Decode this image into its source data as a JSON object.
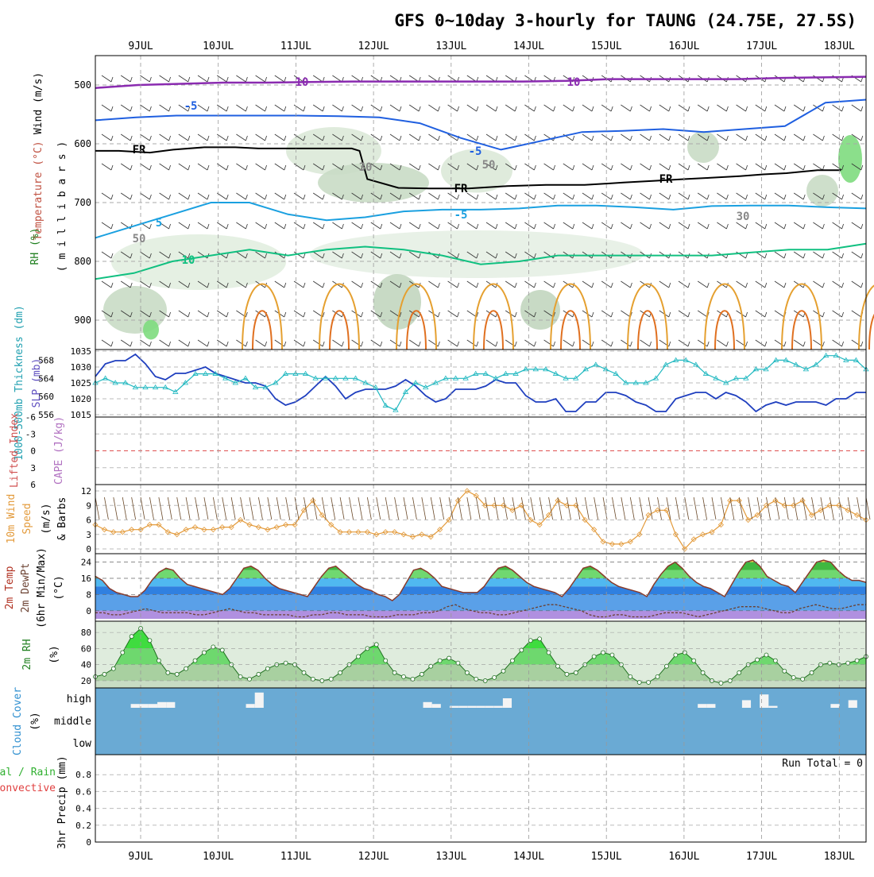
{
  "title": "GFS 0~10day 3-hourly for TAUNG (24.75E, 27.5S)",
  "colors": {
    "slp": "#1f3fbf",
    "thickness": "#20b8c0",
    "wind10m": "#e39a3a",
    "rh_fill": "#3fdc3f",
    "cloud_bg": "#6aaad4",
    "temp_minus10": "#8a2bb0",
    "temp_minus5": "#1f5fe0",
    "temp_5": "#1aa0e0",
    "temp_10": "#10c080",
    "freezing": "#000000",
    "lifted_index_zero": "#e05050"
  },
  "panels": {
    "upper": {
      "ylabel_wind": "Wind (m/s)",
      "ylabel_temp": "Temperature (°C)",
      "ylabel_mb": "( m i l l i b a r s )",
      "ylabel_rh": "RH (%)",
      "contour_labels": [
        "10",
        "10",
        "-5",
        "-5",
        "-5",
        "5",
        "FR",
        "FR",
        "FR",
        "10",
        "30",
        "30",
        "50",
        "50"
      ]
    },
    "slp": {
      "ylabel_thick": "1000-500mb Thickness (dm)",
      "ylabel_slp": "SLP (mb)"
    },
    "cape": {
      "ylabel_li": "Lifted Index",
      "ylabel_cape": "CAPE (J/kg)"
    },
    "wind10": {
      "ylabel_a": "10m Wind",
      "ylabel_b": "Speed",
      "ylabel_c": "(m/s)",
      "ylabel_d": "& Barbs"
    },
    "temp2m": {
      "ylabel_a": "2m Temp",
      "ylabel_b": "2m DewPt",
      "ylabel_c": "(6hr Min/Max)",
      "ylabel_d": "(°C)"
    },
    "rh2m": {
      "ylabel_a": "2m RH",
      "ylabel_b": "(%)"
    },
    "cloud": {
      "ylabel_a": "Cloud Cover",
      "ylabel_b": "(%)",
      "levels": [
        "high",
        "middle",
        "low"
      ]
    },
    "precip": {
      "ylabel_a": "3hr Precip (mm)",
      "ylabel_b": "Total / Rain",
      "ylabel_c": "Convective",
      "run_total": "Run Total = 0"
    }
  },
  "chart_data": {
    "type": "line",
    "x_dates": [
      "9JUL",
      "10JUL",
      "11JUL",
      "12JUL",
      "13JUL",
      "14JUL",
      "15JUL",
      "16JUL",
      "17JUL",
      "18JUL"
    ],
    "pressure_levels": {
      "ticks": [
        500,
        600,
        700,
        800,
        900
      ],
      "ylim": [
        450,
        950
      ],
      "freezing_level_mb": [
        612,
        612,
        615,
        610,
        606,
        606,
        608,
        608,
        608,
        608,
        608,
        612,
        660,
        675,
        676,
        676,
        672,
        670,
        670,
        666,
        663,
        660,
        658,
        655,
        652,
        650,
        645,
        645
      ],
      "freezing_level_x_days": [
        0.0,
        0.3,
        0.7,
        1.0,
        1.4,
        1.8,
        2.1,
        2.5,
        2.8,
        3.1,
        3.3,
        3.4,
        3.5,
        3.9,
        4.3,
        4.8,
        5.3,
        5.8,
        6.3,
        6.8,
        7.2,
        7.6,
        7.9,
        8.3,
        8.6,
        8.9,
        9.3,
        9.6
      ]
    },
    "slp": {
      "series_name": "SLP (mb)",
      "yticks": [
        1015,
        1020,
        1025,
        1030,
        1035
      ],
      "ylim": [
        1015,
        1035
      ],
      "values": [
        1027,
        1031,
        1032,
        1032,
        1034,
        1031,
        1027,
        1026,
        1028,
        1028,
        1029,
        1030,
        1028,
        1027,
        1026,
        1025,
        1025,
        1024,
        1020,
        1018,
        1019,
        1021,
        1024,
        1027,
        1024,
        1020,
        1022,
        1023,
        1023,
        1023,
        1024,
        1026,
        1024,
        1021,
        1019,
        1020,
        1023,
        1023,
        1023,
        1024,
        1026,
        1025,
        1025,
        1021,
        1019,
        1019,
        1020,
        1016,
        1016,
        1019,
        1019,
        1022,
        1022,
        1021,
        1019,
        1018,
        1016,
        1016,
        1020,
        1021,
        1022,
        1022,
        1020,
        1022,
        1021,
        1019,
        1016,
        1018,
        1019,
        1018,
        1019,
        1019,
        1019,
        1018,
        1020,
        1020,
        1022,
        1022
      ]
    },
    "thickness": {
      "series_name": "1000-500mb Thickness (dm)",
      "yticks": [
        556,
        560,
        564,
        568
      ],
      "ylim": [
        556,
        570
      ],
      "values": [
        563,
        564,
        563,
        563,
        562,
        562,
        562,
        562,
        561,
        563,
        565,
        565,
        565,
        564,
        563,
        564,
        562,
        562,
        563,
        565,
        565,
        565,
        564,
        564,
        564,
        564,
        564,
        563,
        562,
        558,
        557,
        561,
        563,
        562,
        563,
        564,
        564,
        564,
        565,
        565,
        564,
        565,
        565,
        566,
        566,
        566,
        565,
        564,
        564,
        566,
        567,
        566,
        565,
        563,
        563,
        563,
        564,
        567,
        568,
        568,
        567,
        565,
        564,
        563,
        564,
        564,
        566,
        566,
        568,
        568,
        567,
        566,
        567,
        569,
        569,
        568,
        568,
        566
      ]
    },
    "lifted_index": {
      "yticks": [
        6,
        3,
        0,
        -3,
        -6
      ],
      "ylim": [
        -6,
        6
      ],
      "values": []
    },
    "wind10m": {
      "series_name": "10m Wind Speed (m/s)",
      "yticks": [
        0,
        3,
        6,
        9,
        12
      ],
      "ylim": [
        0,
        12
      ],
      "values": [
        5,
        4,
        3.5,
        3.5,
        4,
        4,
        5,
        5,
        3.5,
        3,
        4,
        4.5,
        4,
        4,
        4.5,
        4.5,
        6,
        5,
        4.5,
        4,
        4.5,
        5,
        5,
        8,
        10,
        7,
        5,
        3.5,
        3.5,
        3.5,
        3.5,
        3,
        3.5,
        3.5,
        3,
        2.5,
        3,
        2.5,
        4,
        6,
        10,
        12,
        11,
        9,
        9,
        9,
        8,
        9,
        6,
        5,
        7,
        10,
        9,
        9,
        6,
        4,
        1.5,
        1,
        1,
        1.5,
        3,
        7,
        8,
        8,
        3,
        0,
        2,
        3,
        3.5,
        5,
        10,
        10,
        6,
        7,
        9,
        10,
        9,
        9,
        10,
        7,
        8,
        9,
        9,
        8,
        7,
        6
      ]
    },
    "temp2m": {
      "yticks": [
        0,
        8,
        16,
        24
      ],
      "ylim": [
        -4,
        27
      ],
      "temperature": [
        17,
        15,
        11,
        9,
        8,
        7,
        7,
        10,
        15,
        19,
        21,
        20,
        16,
        13,
        12,
        11,
        10,
        9,
        8,
        11,
        16,
        21,
        22,
        20,
        16,
        13,
        11,
        10,
        9,
        8,
        7,
        12,
        17,
        21,
        22,
        19,
        16,
        13,
        11,
        10,
        8,
        7,
        5,
        8,
        14,
        20,
        21,
        19,
        16,
        12,
        11,
        10,
        9,
        9,
        9,
        12,
        17,
        21,
        22,
        20,
        17,
        14,
        12,
        11,
        10,
        9,
        7,
        11,
        16,
        21,
        22,
        20,
        17,
        14,
        12,
        11,
        10,
        9,
        7,
        13,
        18,
        22,
        24,
        21,
        17,
        14,
        12,
        11,
        9,
        7,
        13,
        19,
        24,
        25,
        22,
        17,
        15,
        13,
        12,
        9,
        14,
        19,
        24,
        25,
        24,
        20,
        17,
        15,
        15,
        14
      ],
      "dewpoint": [
        -1,
        -1,
        -2,
        -2,
        -1,
        0,
        1,
        0,
        -1,
        -1,
        -1,
        -1,
        -2,
        -2,
        -1,
        0,
        1,
        0,
        -1,
        -1,
        -2,
        -2,
        -2,
        -2,
        -3,
        -3,
        -2,
        -2,
        -1,
        -1,
        -2,
        -2,
        -2,
        -3,
        -3,
        -3,
        -2,
        -2,
        -2,
        -1,
        -1,
        0,
        2,
        3,
        1,
        0,
        -1,
        -1,
        -2,
        -2,
        -1,
        0,
        1,
        2,
        3,
        3,
        2,
        1,
        0,
        -2,
        -3,
        -3,
        -2,
        -2,
        -3,
        -3,
        -3,
        -2,
        -1,
        -1,
        -1,
        -2,
        -3,
        -2,
        -1,
        0,
        1,
        2,
        2,
        2,
        1,
        0,
        -1,
        -1,
        1,
        2,
        3,
        2,
        1,
        1,
        2,
        3,
        3
      ]
    },
    "rh2m": {
      "yticks": [
        20,
        40,
        60,
        80
      ],
      "ylim": [
        15,
        90
      ],
      "values": [
        25,
        28,
        35,
        55,
        75,
        85,
        70,
        45,
        30,
        28,
        35,
        45,
        55,
        62,
        58,
        40,
        25,
        22,
        28,
        35,
        40,
        42,
        40,
        30,
        22,
        20,
        22,
        30,
        40,
        50,
        60,
        65,
        45,
        30,
        25,
        22,
        28,
        38,
        45,
        48,
        42,
        30,
        22,
        20,
        24,
        32,
        45,
        58,
        70,
        72,
        55,
        38,
        28,
        30,
        40,
        50,
        55,
        52,
        40,
        25,
        18,
        18,
        25,
        38,
        52,
        55,
        45,
        30,
        20,
        17,
        20,
        30,
        40,
        46,
        52,
        45,
        32,
        24,
        22,
        30,
        40,
        42,
        40,
        42,
        45,
        50
      ]
    },
    "cloud_high": [
      0,
      0,
      0,
      0,
      2,
      2,
      2,
      3,
      3,
      0,
      0,
      0,
      0,
      0,
      0,
      0,
      0,
      2,
      8,
      0,
      0,
      0,
      0,
      0,
      0,
      0,
      0,
      0,
      0,
      0,
      0,
      0,
      0,
      0,
      0,
      0,
      0,
      3,
      2,
      0,
      1,
      1,
      1,
      1,
      1,
      1,
      5,
      0,
      0,
      0,
      0,
      0,
      0,
      0,
      0,
      0,
      0,
      0,
      0,
      0,
      0,
      0,
      0,
      0,
      0,
      0,
      0,
      0,
      2,
      2,
      0,
      0,
      0,
      4,
      0,
      7,
      1,
      0,
      0,
      0,
      0,
      0,
      0,
      2,
      0,
      4,
      0
    ],
    "precip": {
      "yticks": [
        0,
        0.2,
        0.4,
        0.6,
        0.8
      ],
      "ylim": [
        0,
        1
      ],
      "values": []
    },
    "contours": {
      "temp_minus10_mb": [
        505,
        500,
        498,
        496,
        496,
        495,
        494,
        494,
        494,
        494,
        494,
        493,
        490,
        490,
        490,
        490,
        488,
        487,
        486
      ],
      "temp_minus5_mb": [
        560,
        555,
        552,
        552,
        552,
        552,
        553,
        555,
        565,
        590,
        610,
        595,
        580,
        578,
        575,
        580,
        575,
        570,
        530,
        525
      ],
      "temp_5_mb": [
        760,
        740,
        720,
        700,
        700,
        720,
        730,
        725,
        715,
        712,
        712,
        710,
        705,
        705,
        708,
        712,
        706,
        705,
        705,
        708,
        710
      ],
      "temp_10_mb": [
        830,
        820,
        800,
        790,
        780,
        790,
        780,
        775,
        780,
        790,
        805,
        800,
        790,
        790,
        790,
        790,
        790,
        785,
        780,
        780,
        770
      ]
    }
  }
}
